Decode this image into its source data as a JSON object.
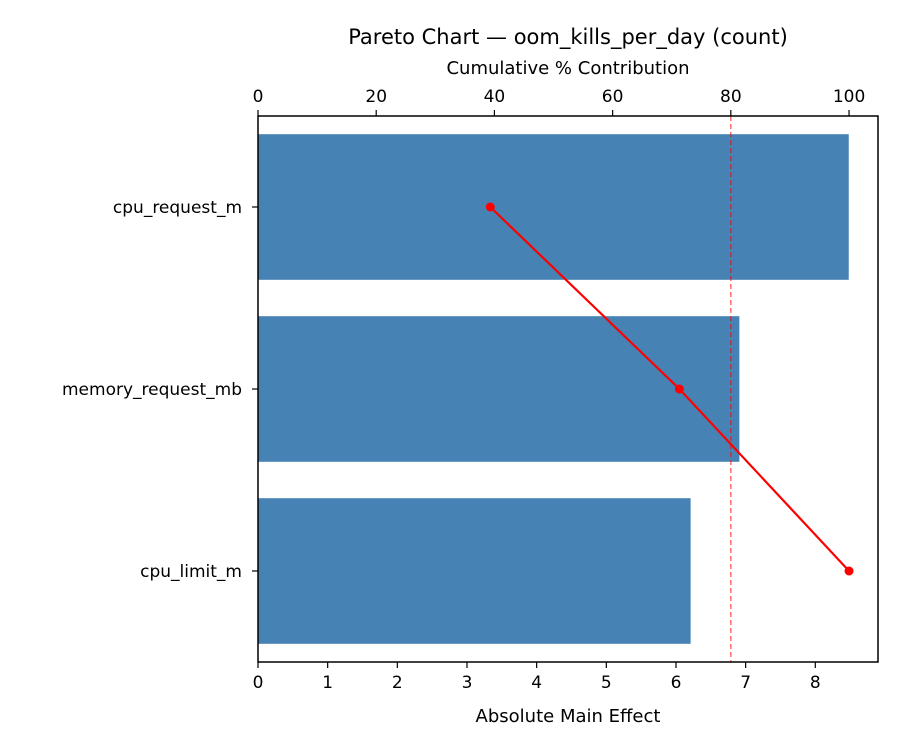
{
  "chart_data": {
    "type": "bar",
    "orientation": "horizontal",
    "title": "Pareto Chart — oom_kills_per_day (count)",
    "categories": [
      "cpu_request_m",
      "memory_request_mb",
      "cpu_limit_m"
    ],
    "values": [
      8.48,
      6.91,
      6.21
    ],
    "xlabel": "Absolute Main Effect",
    "xlim": [
      0,
      8.9
    ],
    "xticks": [
      "0",
      "1",
      "2",
      "3",
      "4",
      "5",
      "6",
      "7",
      "8"
    ],
    "secondary_axis": {
      "label": "Cumulative % Contribution",
      "lim": [
        0,
        104.9
      ],
      "ticks": [
        "0",
        "20",
        "40",
        "60",
        "80",
        "100"
      ]
    },
    "cumulative_line": {
      "values": [
        39.3,
        71.3,
        100.0
      ]
    },
    "threshold": 80,
    "grid": false,
    "colors": {
      "bar": "#4682b4",
      "line": "#ff0000",
      "threshold": "#ff0000"
    }
  }
}
